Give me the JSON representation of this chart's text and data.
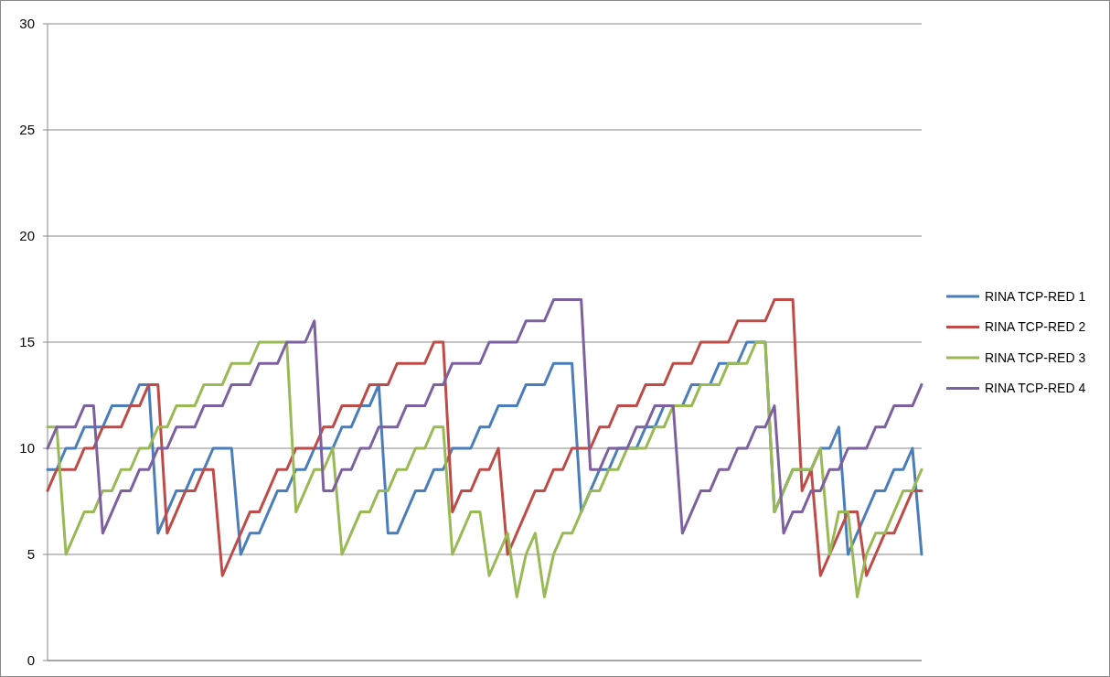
{
  "chart_data": {
    "type": "line",
    "categories": [
      null,
      null,
      null,
      null,
      null,
      null,
      null,
      null,
      null,
      null,
      null,
      null,
      null,
      null,
      null,
      null,
      null,
      null,
      null,
      null,
      null,
      null,
      null,
      null,
      null,
      null,
      null,
      null,
      null,
      null,
      null,
      null,
      null,
      null,
      null,
      null,
      null,
      null,
      null,
      null,
      null,
      null,
      null,
      null,
      null,
      null,
      null,
      null,
      null,
      null,
      null,
      null,
      null,
      null,
      null,
      null,
      null,
      null,
      null,
      null,
      null,
      null,
      null,
      null,
      null,
      null,
      null,
      null,
      null,
      null,
      null,
      null,
      null,
      null,
      null,
      null,
      null,
      null,
      null,
      null,
      null,
      null,
      null,
      null,
      null,
      null,
      null,
      null,
      null,
      null,
      null,
      null,
      null,
      null,
      null,
      null
    ],
    "series": [
      {
        "name": "RINA TCP-RED 1",
        "color": "#4a7ebb",
        "values": [
          9,
          9,
          10,
          10,
          11,
          11,
          11,
          12,
          12,
          12,
          13,
          13,
          6,
          7,
          8,
          8,
          9,
          9,
          10,
          10,
          10,
          5,
          6,
          6,
          7,
          8,
          8,
          9,
          9,
          10,
          10,
          10,
          11,
          11,
          12,
          12,
          13,
          6,
          6,
          7,
          8,
          8,
          9,
          9,
          10,
          10,
          10,
          11,
          11,
          12,
          12,
          12,
          13,
          13,
          13,
          14,
          14,
          14,
          7,
          8,
          9,
          9,
          10,
          10,
          10,
          11,
          11,
          12,
          12,
          12,
          13,
          13,
          13,
          14,
          14,
          14,
          15,
          15,
          15,
          7,
          8,
          9,
          9,
          9,
          10,
          10,
          11,
          5,
          6,
          7,
          8,
          8,
          9,
          9,
          10,
          5
        ]
      },
      {
        "name": "RINA TCP-RED 2",
        "color": "#be4b48",
        "values": [
          8,
          9,
          9,
          9,
          10,
          10,
          11,
          11,
          11,
          12,
          12,
          13,
          13,
          6,
          7,
          8,
          8,
          9,
          9,
          4,
          5,
          6,
          7,
          7,
          8,
          9,
          9,
          10,
          10,
          10,
          11,
          11,
          12,
          12,
          12,
          13,
          13,
          13,
          14,
          14,
          14,
          14,
          15,
          15,
          7,
          8,
          8,
          9,
          9,
          10,
          5,
          6,
          7,
          8,
          8,
          9,
          9,
          10,
          10,
          10,
          11,
          11,
          12,
          12,
          12,
          13,
          13,
          13,
          14,
          14,
          14,
          15,
          15,
          15,
          15,
          16,
          16,
          16,
          16,
          17,
          17,
          17,
          8,
          9,
          4,
          5,
          6,
          7,
          7,
          4,
          5,
          6,
          6,
          7,
          8,
          8
        ]
      },
      {
        "name": "RINA TCP-RED 3",
        "color": "#98b954",
        "values": [
          11,
          11,
          5,
          6,
          7,
          7,
          8,
          8,
          9,
          9,
          10,
          10,
          11,
          11,
          12,
          12,
          12,
          13,
          13,
          13,
          14,
          14,
          14,
          15,
          15,
          15,
          15,
          7,
          8,
          9,
          9,
          10,
          5,
          6,
          7,
          7,
          8,
          8,
          9,
          9,
          10,
          10,
          11,
          11,
          5,
          6,
          7,
          7,
          4,
          5,
          6,
          3,
          5,
          6,
          3,
          5,
          6,
          6,
          7,
          8,
          8,
          9,
          9,
          10,
          10,
          10,
          11,
          11,
          12,
          12,
          12,
          13,
          13,
          13,
          14,
          14,
          14,
          15,
          15,
          7,
          8,
          9,
          9,
          9,
          10,
          5,
          7,
          7,
          3,
          5,
          6,
          6,
          7,
          8,
          8,
          9
        ]
      },
      {
        "name": "RINA TCP-RED 4",
        "color": "#7d60a0",
        "values": [
          10,
          11,
          11,
          11,
          12,
          12,
          6,
          7,
          8,
          8,
          9,
          9,
          10,
          10,
          11,
          11,
          11,
          12,
          12,
          12,
          13,
          13,
          13,
          14,
          14,
          14,
          15,
          15,
          15,
          16,
          8,
          8,
          9,
          9,
          10,
          10,
          11,
          11,
          11,
          12,
          12,
          12,
          13,
          13,
          14,
          14,
          14,
          14,
          15,
          15,
          15,
          15,
          16,
          16,
          16,
          17,
          17,
          17,
          17,
          9,
          9,
          10,
          10,
          10,
          11,
          11,
          12,
          12,
          12,
          6,
          7,
          8,
          8,
          9,
          9,
          10,
          10,
          11,
          11,
          12,
          6,
          7,
          7,
          8,
          8,
          9,
          9,
          10,
          10,
          10,
          11,
          11,
          12,
          12,
          12,
          13
        ]
      }
    ],
    "ylim": [
      0,
      30
    ],
    "yticks": [
      0,
      5,
      10,
      15,
      20,
      25,
      30
    ],
    "grid": "y",
    "legend": "right"
  }
}
